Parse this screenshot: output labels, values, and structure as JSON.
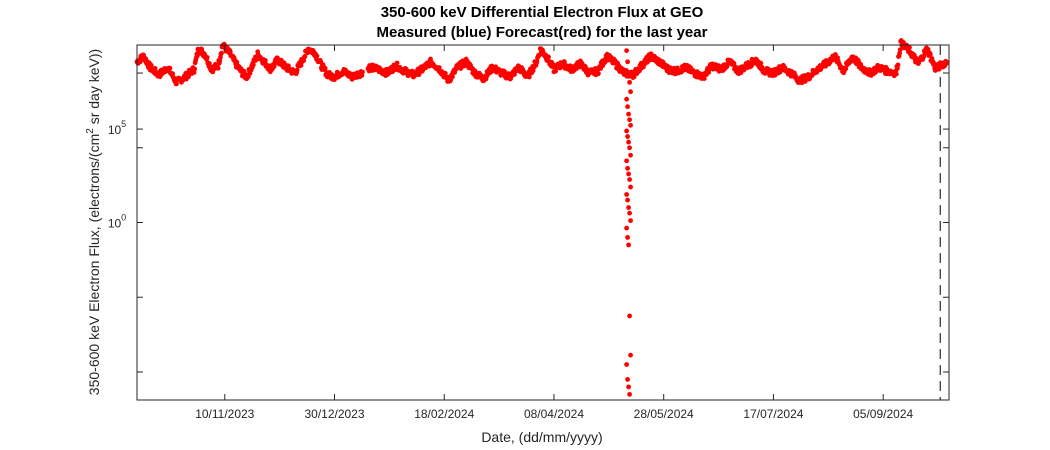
{
  "chart_data": {
    "type": "scatter",
    "title": [
      "350-600 keV Differential Electron Flux at GEO",
      "Measured (blue) Forecast(red) for the last year"
    ],
    "xlabel": "Date, (dd/mm/yyyy)",
    "ylabel": {
      "prefix": "350-600 keV Electron Flux, (electrons/(cm",
      "superscript": "2",
      "suffix": " sr day keV))"
    },
    "x_tick_labels": [
      "10/11/2023",
      "30/12/2023",
      "18/02/2024",
      "08/04/2024",
      "28/05/2024",
      "17/07/2024",
      "05/09/2024"
    ],
    "x_tick_days": [
      40,
      90,
      140,
      190,
      240,
      290,
      340
    ],
    "xlim_days": [
      0,
      370
    ],
    "y_scale": "log",
    "ylim_exponent": [
      -9.5,
      9.5
    ],
    "y_tick_labels": [
      {
        "base": "10",
        "exp": "5",
        "exponent_value": 5
      },
      {
        "base": "10",
        "exp": "0",
        "exponent_value": 0
      }
    ],
    "y_minor_tick_exponents": [
      -8,
      -4,
      4,
      8
    ],
    "vertical_marker": {
      "day": 366,
      "style": "dashed",
      "color": "#000000"
    },
    "series": [
      {
        "name": "Forecast",
        "color": "#ff0000",
        "baseline_log10": [
          [
            0,
            8.6
          ],
          [
            3,
            8.9
          ],
          [
            6,
            8.3
          ],
          [
            10,
            7.9
          ],
          [
            14,
            8.3
          ],
          [
            18,
            7.5
          ],
          [
            22,
            7.8
          ],
          [
            26,
            8.2
          ],
          [
            28,
            9.3
          ],
          [
            31,
            9.0
          ],
          [
            34,
            8.2
          ],
          [
            37,
            8.4
          ],
          [
            39,
            9.5
          ],
          [
            42,
            9.1
          ],
          [
            45,
            8.5
          ],
          [
            48,
            8.0
          ],
          [
            50,
            7.8
          ],
          [
            53,
            8.5
          ],
          [
            55,
            9.0
          ],
          [
            58,
            8.6
          ],
          [
            61,
            8.2
          ],
          [
            64,
            8.7
          ],
          [
            68,
            8.3
          ],
          [
            72,
            8.0
          ],
          [
            75,
            8.6
          ],
          [
            78,
            9.3
          ],
          [
            81,
            9.1
          ],
          [
            84,
            8.4
          ],
          [
            87,
            7.9
          ],
          [
            90,
            7.8
          ],
          [
            94,
            8.1
          ],
          [
            98,
            7.8
          ],
          [
            102,
            8.0
          ],
          [
            106,
            8.3
          ],
          [
            110,
            8.2
          ],
          [
            114,
            8.0
          ],
          [
            118,
            8.4
          ],
          [
            122,
            8.1
          ],
          [
            126,
            7.9
          ],
          [
            130,
            8.2
          ],
          [
            134,
            8.6
          ],
          [
            138,
            8.2
          ],
          [
            142,
            7.6
          ],
          [
            146,
            8.3
          ],
          [
            150,
            8.6
          ],
          [
            154,
            8.0
          ],
          [
            158,
            7.7
          ],
          [
            162,
            8.3
          ],
          [
            166,
            8.0
          ],
          [
            170,
            7.8
          ],
          [
            174,
            8.3
          ],
          [
            178,
            7.8
          ],
          [
            182,
            8.6
          ],
          [
            184,
            9.3
          ],
          [
            187,
            8.8
          ],
          [
            190,
            8.2
          ],
          [
            194,
            8.5
          ],
          [
            198,
            8.2
          ],
          [
            202,
            8.5
          ],
          [
            206,
            8.0
          ],
          [
            210,
            8.1
          ],
          [
            214,
            8.9
          ],
          [
            218,
            8.5
          ],
          [
            222,
            8.0
          ],
          [
            226,
            7.9
          ],
          [
            230,
            8.4
          ],
          [
            234,
            8.9
          ],
          [
            238,
            8.6
          ],
          [
            242,
            8.2
          ],
          [
            246,
            8.1
          ],
          [
            250,
            8.3
          ],
          [
            254,
            8.0
          ],
          [
            258,
            7.8
          ],
          [
            262,
            8.4
          ],
          [
            266,
            8.2
          ],
          [
            270,
            8.6
          ],
          [
            274,
            8.1
          ],
          [
            278,
            8.4
          ],
          [
            282,
            8.7
          ],
          [
            286,
            8.1
          ],
          [
            290,
            8.0
          ],
          [
            294,
            8.3
          ],
          [
            298,
            8.0
          ],
          [
            302,
            7.6
          ],
          [
            306,
            7.8
          ],
          [
            310,
            8.2
          ],
          [
            314,
            8.5
          ],
          [
            318,
            8.9
          ],
          [
            322,
            8.1
          ],
          [
            326,
            8.9
          ],
          [
            330,
            8.3
          ],
          [
            334,
            8.0
          ],
          [
            338,
            8.3
          ],
          [
            342,
            8.1
          ],
          [
            346,
            8.0
          ],
          [
            348,
            9.6
          ],
          [
            352,
            9.2
          ],
          [
            356,
            8.5
          ],
          [
            360,
            9.3
          ],
          [
            364,
            8.2
          ],
          [
            366,
            8.4
          ],
          [
            369,
            8.6
          ]
        ],
        "gaps_days": [
          [
            103,
            105
          ]
        ],
        "dropout_day": 224,
        "dropout_log10": [
          9.2,
          8.6,
          8.0,
          7.5,
          7.0,
          6.6,
          6.2,
          5.8,
          5.5,
          5.2,
          4.9,
          4.6,
          4.3,
          4.0,
          3.6,
          3.3,
          2.9,
          2.6,
          2.3,
          1.9,
          1.5,
          1.2,
          0.8,
          0.5,
          0.1,
          -0.3,
          -0.8,
          -1.2,
          -5.0,
          -7.1,
          -7.6,
          -8.4,
          -8.8,
          -9.2
        ]
      },
      {
        "name": "Measured",
        "color": "#0000ff",
        "baseline_log10": []
      }
    ]
  }
}
